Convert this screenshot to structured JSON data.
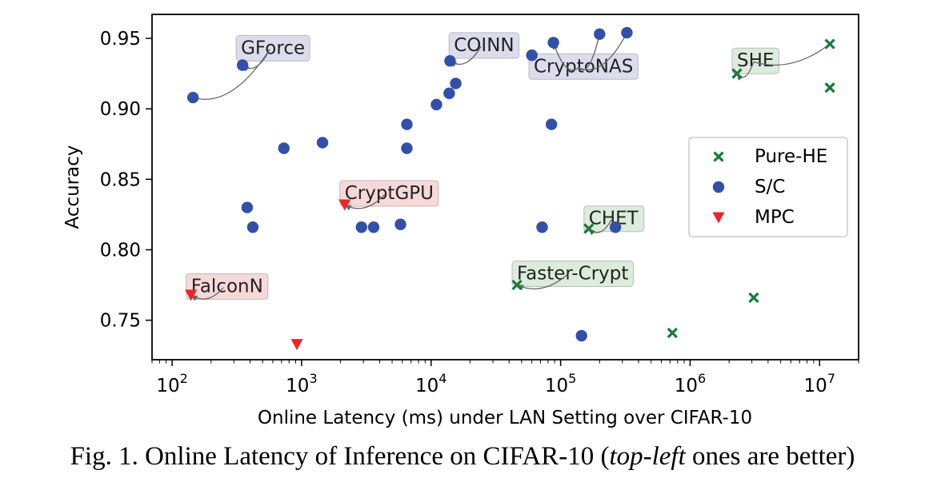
{
  "chart_data": {
    "type": "scatter",
    "xlabel": "Online Latency (ms) under LAN Setting over CIFAR-10",
    "ylabel": "Accuracy",
    "xscale": "log",
    "xlim": [
      70,
      20000000
    ],
    "ylim": [
      0.722,
      0.967
    ],
    "x_ticks": [
      {
        "value": 100,
        "base": "10",
        "exp": "2"
      },
      {
        "value": 1000,
        "base": "10",
        "exp": "3"
      },
      {
        "value": 10000,
        "base": "10",
        "exp": "4"
      },
      {
        "value": 100000,
        "base": "10",
        "exp": "5"
      },
      {
        "value": 1000000,
        "base": "10",
        "exp": "6"
      },
      {
        "value": 10000000,
        "base": "10",
        "exp": "7"
      }
    ],
    "y_ticks": [
      "0.75",
      "0.80",
      "0.85",
      "0.90",
      "0.95"
    ],
    "grid": false,
    "legend_position": "center-right",
    "series": [
      {
        "name": "Pure-HE",
        "marker": "x",
        "color": "#1a7a3c",
        "points": [
          {
            "x": 12000000,
            "y": 0.946
          },
          {
            "x": 2300000,
            "y": 0.925
          },
          {
            "x": 12000000,
            "y": 0.915
          },
          {
            "x": 165000,
            "y": 0.815
          },
          {
            "x": 46000,
            "y": 0.775
          },
          {
            "x": 3100000,
            "y": 0.766
          },
          {
            "x": 730000,
            "y": 0.741
          }
        ]
      },
      {
        "name": "S/C",
        "marker": "circle",
        "color": "#3350a8",
        "points": [
          {
            "x": 145,
            "y": 0.908
          },
          {
            "x": 350,
            "y": 0.931
          },
          {
            "x": 14000,
            "y": 0.934
          },
          {
            "x": 60000,
            "y": 0.938
          },
          {
            "x": 88000,
            "y": 0.947
          },
          {
            "x": 200000,
            "y": 0.953
          },
          {
            "x": 325000,
            "y": 0.954
          },
          {
            "x": 15500,
            "y": 0.918
          },
          {
            "x": 13800,
            "y": 0.911
          },
          {
            "x": 11000,
            "y": 0.903
          },
          {
            "x": 6500,
            "y": 0.889
          },
          {
            "x": 6500,
            "y": 0.872
          },
          {
            "x": 85000,
            "y": 0.889
          },
          {
            "x": 730,
            "y": 0.872
          },
          {
            "x": 1450,
            "y": 0.876
          },
          {
            "x": 380,
            "y": 0.83
          },
          {
            "x": 420,
            "y": 0.816
          },
          {
            "x": 2900,
            "y": 0.816
          },
          {
            "x": 3600,
            "y": 0.816
          },
          {
            "x": 5800,
            "y": 0.818
          },
          {
            "x": 72000,
            "y": 0.816
          },
          {
            "x": 265000,
            "y": 0.816
          },
          {
            "x": 145000,
            "y": 0.739
          }
        ]
      },
      {
        "name": "MPC",
        "marker": "triangle-down",
        "color": "#e8262b",
        "points": [
          {
            "x": 2150,
            "y": 0.832
          },
          {
            "x": 140,
            "y": 0.768
          },
          {
            "x": 920,
            "y": 0.733
          }
        ]
      }
    ],
    "annotations": [
      {
        "text": "GForce",
        "color": "#dcdcec",
        "text_x": 340,
        "text_y": 0.939,
        "target_x": 350,
        "target_y": 0.931,
        "extra_targets": [
          {
            "x": 145,
            "y": 0.908
          }
        ]
      },
      {
        "text": "COINN",
        "color": "#dcdcec",
        "text_x": 15000,
        "text_y": 0.941,
        "target_x": 14000,
        "target_y": 0.934,
        "extra_targets": []
      },
      {
        "text": "CryptoNAS",
        "color": "#dcdcec",
        "text_x": 62000,
        "text_y": 0.926,
        "target_x": 88000,
        "target_y": 0.947,
        "extra_targets": [
          {
            "x": 200000,
            "y": 0.953
          },
          {
            "x": 325000,
            "y": 0.954
          }
        ]
      },
      {
        "text": "SHE",
        "color": "#dcecdc",
        "text_x": 2300000,
        "text_y": 0.93,
        "target_x": 2300000,
        "target_y": 0.925,
        "extra_targets": [
          {
            "x": 12000000,
            "y": 0.946
          }
        ]
      },
      {
        "text": "CryptGPU",
        "color": "#f7d8d8",
        "text_x": 2150,
        "text_y": 0.836,
        "target_x": 2150,
        "target_y": 0.832,
        "extra_targets": []
      },
      {
        "text": "CHET",
        "color": "#dcecdc",
        "text_x": 165000,
        "text_y": 0.818,
        "target_x": 165000,
        "target_y": 0.815,
        "extra_targets": []
      },
      {
        "text": "Faster-Crypt",
        "color": "#dcecdc",
        "text_x": 46000,
        "text_y": 0.779,
        "target_x": 46000,
        "target_y": 0.775,
        "extra_targets": []
      },
      {
        "text": "FalconN",
        "color": "#f7d8d8",
        "text_x": 140,
        "text_y": 0.77,
        "target_x": 140,
        "target_y": 0.768,
        "extra_targets": []
      }
    ]
  },
  "caption": {
    "prefix": "Fig. 1.  Online Latency of Inference on CIFAR-10 (",
    "emphasis": "top-left",
    "suffix": " ones are better)"
  }
}
